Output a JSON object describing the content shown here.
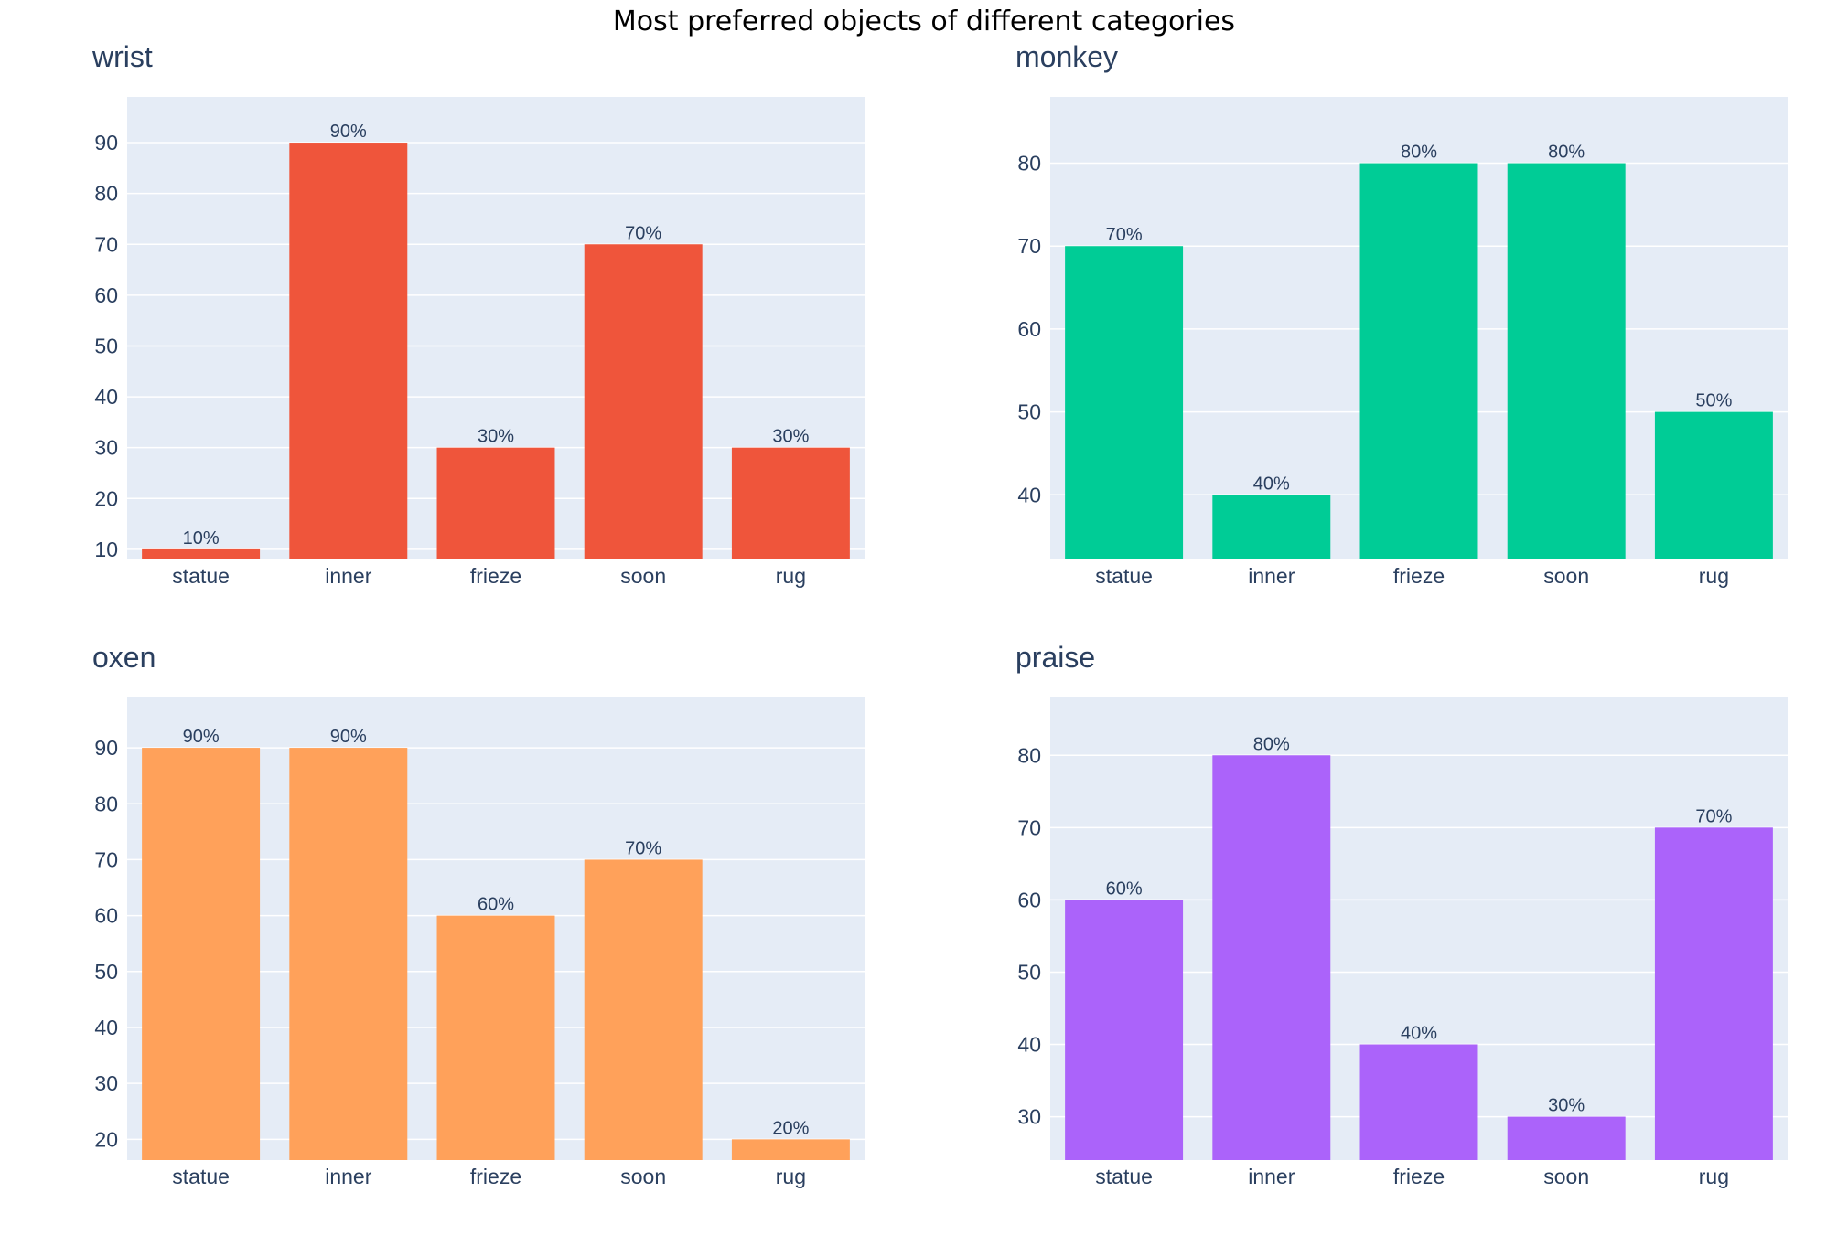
{
  "title": "Most preferred objects of different categories",
  "chart_data": [
    {
      "type": "bar",
      "title": "wrist",
      "categories": [
        "statue",
        "inner",
        "frieze",
        "soon",
        "rug"
      ],
      "values": [
        10,
        90,
        30,
        70,
        30
      ],
      "labels": [
        "10%",
        "90%",
        "30%",
        "70%",
        "30%"
      ],
      "yticks": [
        10,
        20,
        30,
        40,
        50,
        60,
        70,
        80,
        90
      ],
      "ylim": [
        8,
        99
      ],
      "color": "#EF553B",
      "grid": true
    },
    {
      "type": "bar",
      "title": "monkey",
      "categories": [
        "statue",
        "inner",
        "frieze",
        "soon",
        "rug"
      ],
      "values": [
        70,
        40,
        80,
        80,
        50
      ],
      "labels": [
        "70%",
        "40%",
        "80%",
        "80%",
        "50%"
      ],
      "yticks": [
        40,
        50,
        60,
        70,
        80
      ],
      "ylim": [
        32.2,
        88
      ],
      "color": "#00CC96",
      "grid": true
    },
    {
      "type": "bar",
      "title": "oxen",
      "categories": [
        "statue",
        "inner",
        "frieze",
        "soon",
        "rug"
      ],
      "values": [
        90,
        90,
        60,
        70,
        20
      ],
      "labels": [
        "90%",
        "90%",
        "60%",
        "70%",
        "20%"
      ],
      "yticks": [
        20,
        30,
        40,
        50,
        60,
        70,
        80,
        90
      ],
      "ylim": [
        16.3,
        99
      ],
      "color": "#FFA15A",
      "grid": true
    },
    {
      "type": "bar",
      "title": "praise",
      "categories": [
        "statue",
        "inner",
        "frieze",
        "soon",
        "rug"
      ],
      "values": [
        60,
        80,
        40,
        30,
        70
      ],
      "labels": [
        "60%",
        "80%",
        "40%",
        "30%",
        "70%"
      ],
      "yticks": [
        30,
        40,
        50,
        60,
        70,
        80
      ],
      "ylim": [
        24,
        88
      ],
      "color": "#AB63FA",
      "grid": true
    }
  ]
}
